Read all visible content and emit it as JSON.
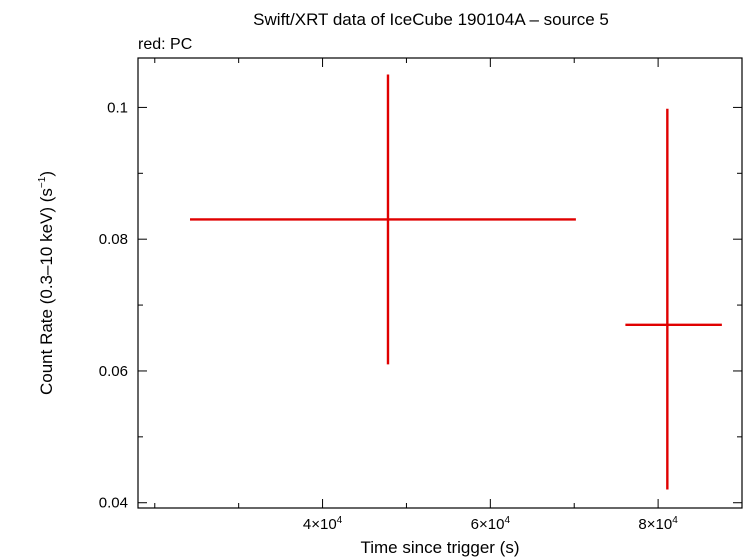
{
  "chart_data": {
    "type": "scatter",
    "title": "Swift/XRT data of IceCube 190104A – source 5",
    "subtitle": "red: PC",
    "xlabel": "Time since trigger (s)",
    "ylabel_main": "Count Rate (0.3–10 keV) (s",
    "ylabel_sup": "−1",
    "ylabel_close": ")",
    "xlim": [
      18000,
      90000
    ],
    "ylim": [
      0.0392,
      0.1075
    ],
    "grid": false,
    "x_ticks": [
      {
        "value": 40000,
        "mant": "4×10",
        "exp": "4"
      },
      {
        "value": 60000,
        "mant": "6×10",
        "exp": "4"
      },
      {
        "value": 80000,
        "mant": "8×10",
        "exp": "4"
      }
    ],
    "y_ticks": [
      {
        "value": 0.04,
        "label": "0.04"
      },
      {
        "value": 0.06,
        "label": "0.06"
      },
      {
        "value": 0.08,
        "label": "0.08"
      },
      {
        "value": 0.1,
        "label": "0.1"
      }
    ],
    "series": [
      {
        "color": "#e00000",
        "points": [
          {
            "x": 47800,
            "xerr_low": 23600,
            "xerr_high": 22400,
            "y": 0.083,
            "yerr_low": 0.022,
            "yerr_high": 0.022
          },
          {
            "x": 81100,
            "xerr_low": 5000,
            "xerr_high": 6500,
            "y": 0.067,
            "yerr_low": 0.025,
            "yerr_high": 0.0328
          }
        ]
      }
    ]
  }
}
